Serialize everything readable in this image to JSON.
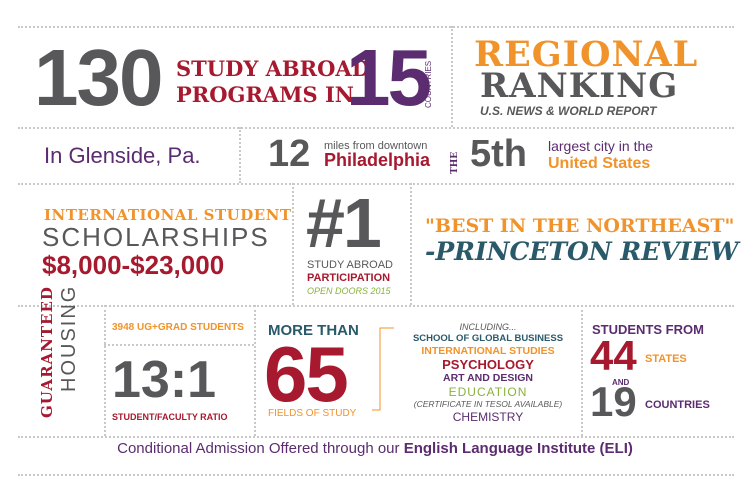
{
  "row1": {
    "big_number": "130",
    "programs_line1": "STUDY ABROAD",
    "programs_line2": "PROGRAMS IN",
    "countries_number": "15",
    "countries_label": "COUNTRIES",
    "ranking_line1": "REGIONAL",
    "ranking_line2": "RANKING",
    "ranking_source": "U.S. NEWS & WORLD REPORT"
  },
  "row2": {
    "location": "In Glenside, Pa.",
    "miles_number": "12",
    "miles_text": "miles from downtown",
    "city": "Philadelphia",
    "the_label": "THE",
    "rank_number": "5th",
    "rank_text": "largest city in the",
    "country": "United States"
  },
  "row3": {
    "scholar_line1": "INTERNATIONAL STUDENT",
    "scholar_line2": "SCHOLARSHIPS",
    "scholar_amount": "$8,000-$23,000",
    "number_one": "#1",
    "participation_line1": "STUDY ABROAD",
    "participation_line2": "PARTICIPATION",
    "participation_source": "OPEN DOORS 2015",
    "quote": "\"BEST IN THE NORTHEAST\"",
    "quote_source": "-PRINCETON REVIEW"
  },
  "row4": {
    "housing_line1": "GUARANTEED",
    "housing_line2": "HOUSING",
    "students_count": "3948 UG+GRAD STUDENTS",
    "ratio": "13:1",
    "ratio_label": "STUDENT/FACULTY RATIO",
    "more_than": "MORE THAN",
    "fields_number": "65",
    "fields_label": "FIELDS OF STUDY",
    "including": "INCLUDING...",
    "fields": [
      "SCHOOL OF GLOBAL BUSINESS",
      "INTERNATIONAL STUDIES",
      "PSYCHOLOGY",
      "ART AND DESIGN",
      "EDUCATION",
      "(CERTIFICATE IN TESOL AVAILABLE)",
      "CHEMISTRY"
    ],
    "students_from": "STUDENTS FROM",
    "states_number": "44",
    "states_label": "STATES",
    "and_label": "AND",
    "countries_number": "19",
    "countries_label": "COUNTRIES"
  },
  "footer": {
    "text_plain": "Conditional Admission Offered through our",
    "text_bold": "English Language Institute (ELI)"
  },
  "colors": {
    "grey": "#58585a",
    "red": "#a6192e",
    "orange": "#f0932b",
    "purple": "#5b2c6f",
    "teal": "#2a5a6a",
    "green": "#8ab23b",
    "divider": "#c9c9c9"
  }
}
